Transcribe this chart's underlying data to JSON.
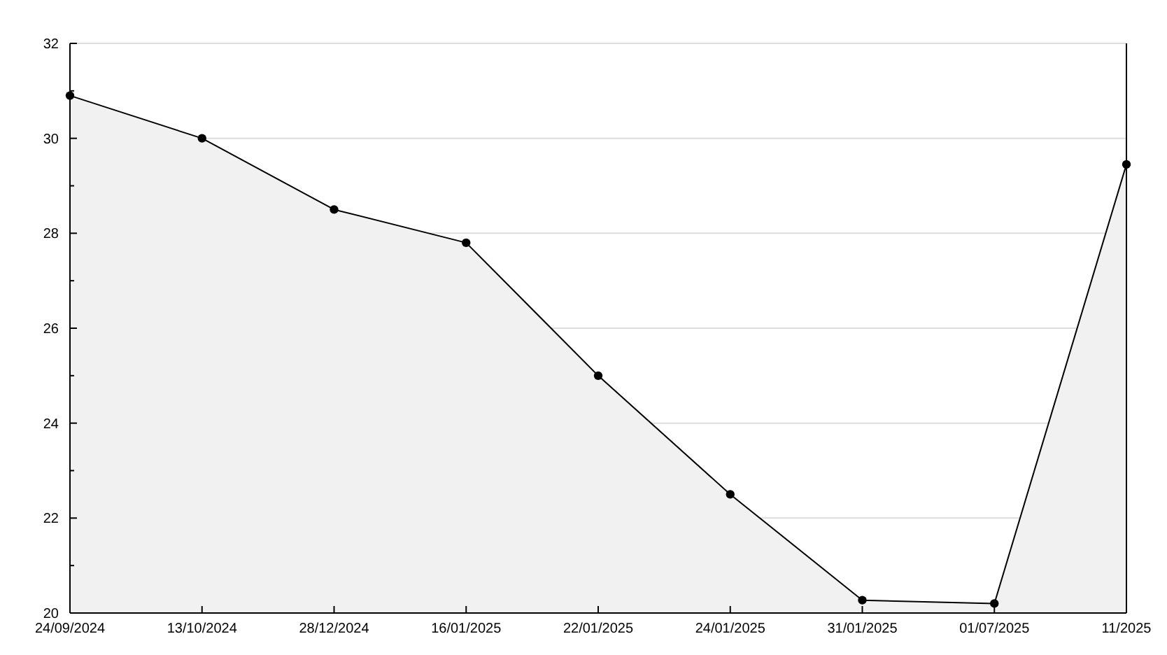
{
  "chart_data": {
    "type": "area",
    "categories": [
      "24/09/2024",
      "13/10/2024",
      "28/12/2024",
      "16/01/2025",
      "22/01/2025",
      "24/01/2025",
      "31/01/2025",
      "01/07/2025",
      "11/2025"
    ],
    "series": [
      {
        "color": "#000000",
        "values": [
          30.9,
          30,
          28.5,
          27.8,
          25,
          22.5,
          20.27,
          20.2,
          29.45
        ]
      }
    ],
    "ylim": [
      20,
      32
    ],
    "yticks": [
      20,
      {
        "value": 21,
        "label": null
      },
      22,
      {
        "value": 23,
        "label": null
      },
      24,
      {
        "value": 25,
        "label": null
      },
      26,
      {
        "value": 27,
        "label": null
      },
      28,
      {
        "value": 29,
        "label": null
      },
      30,
      {
        "value": 31,
        "label": null
      },
      32
    ],
    "grid": "y",
    "marker": "circle",
    "line_style": "solid"
  }
}
